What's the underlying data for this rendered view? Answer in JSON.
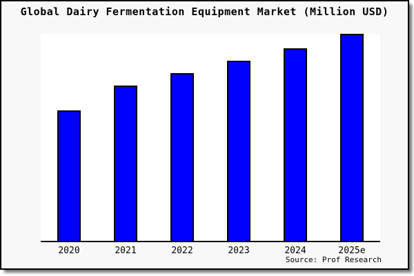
{
  "header": {
    "title": "Global Dairy Fermentation Equipment Market (Million USD)"
  },
  "chart_data": {
    "type": "bar",
    "title": "Global Dairy Fermentation Equipment Market (Million USD)",
    "categories": [
      "2020",
      "2021",
      "2022",
      "2023",
      "2024",
      "2025e"
    ],
    "values": [
      63,
      75,
      81,
      87,
      93,
      100
    ],
    "values_note": "no y-axis scale or data labels shown in image; values are relative bar heights with 2025e = 100",
    "xlabel": "",
    "ylabel": "",
    "ylim": [
      0,
      100
    ],
    "grid": false,
    "legend_position": "none",
    "bar_color": "#0000ff",
    "bar_border_color": "#000000",
    "axis_color": "#000000",
    "plot_background": "#ffffff",
    "frame_background": "#f8f8f8"
  },
  "footer": {
    "source": "Source: Prof Research"
  }
}
